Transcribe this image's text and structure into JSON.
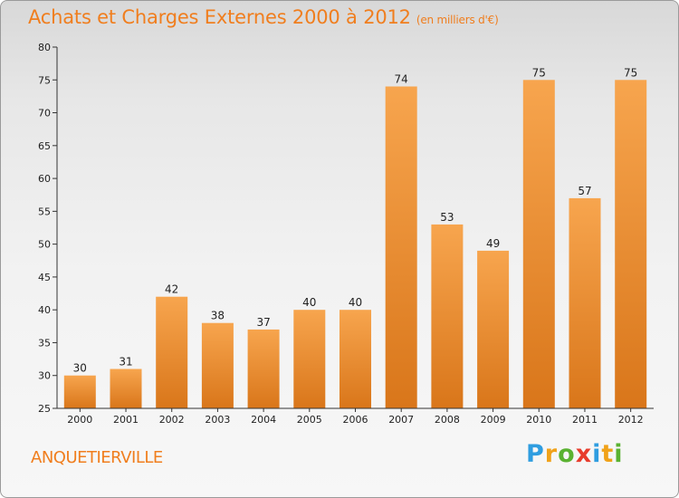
{
  "header": {
    "title": "Achats et Charges Externes 2000 à 2012",
    "subtitle": "(en milliers d'€)"
  },
  "footer": {
    "commune": "ANQUETIERVILLE",
    "brand_letters": [
      {
        "char": "P",
        "color": "#2f9de0"
      },
      {
        "char": "r",
        "color": "#f0a21a"
      },
      {
        "char": "o",
        "color": "#5ab231"
      },
      {
        "char": "x",
        "color": "#e83c2c"
      },
      {
        "char": "i",
        "color": "#2f9de0"
      },
      {
        "char": "t",
        "color": "#f0a21a"
      },
      {
        "char": "i",
        "color": "#5ab231"
      }
    ]
  },
  "chart_data": {
    "type": "bar",
    "title": "Achats et Charges Externes 2000 à 2012",
    "subtitle": "(en milliers d'€)",
    "categories": [
      "2000",
      "2001",
      "2002",
      "2003",
      "2004",
      "2005",
      "2006",
      "2007",
      "2008",
      "2009",
      "2010",
      "2011",
      "2012"
    ],
    "values": [
      30,
      31,
      42,
      38,
      37,
      40,
      40,
      74,
      53,
      49,
      75,
      57,
      75
    ],
    "ylim": [
      25,
      80
    ],
    "yticks": [
      25,
      30,
      35,
      40,
      45,
      50,
      55,
      60,
      65,
      70,
      75,
      80
    ],
    "grid": false,
    "bar_color_top": "#f7a54e",
    "bar_color_bottom": "#d9761a"
  }
}
